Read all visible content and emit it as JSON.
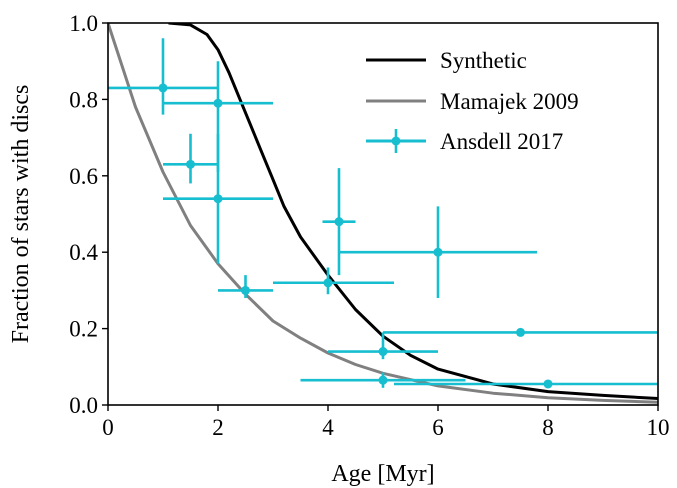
{
  "chart_data": {
    "type": "line",
    "xlabel": "Age [Myr]",
    "ylabel": "Fraction of stars with discs",
    "xlim": [
      0,
      10
    ],
    "ylim": [
      0,
      1.0
    ],
    "xticks": [
      0,
      2,
      4,
      6,
      8,
      10
    ],
    "yticks": [
      0.0,
      0.2,
      0.4,
      0.6,
      0.8,
      1.0
    ],
    "xtick_labels": [
      "0",
      "2",
      "4",
      "6",
      "8",
      "10"
    ],
    "ytick_labels": [
      "0.0",
      "0.2",
      "0.4",
      "0.6",
      "0.8",
      "1.0"
    ],
    "grid": false,
    "legend_position": "top-right",
    "series": [
      {
        "name": "Synthetic",
        "type": "line",
        "color": "#000000",
        "x": [
          1.1,
          1.5,
          1.8,
          2.0,
          2.2,
          2.4,
          2.6,
          2.8,
          3.0,
          3.2,
          3.5,
          4.0,
          4.5,
          5.0,
          5.5,
          6.0,
          7.0,
          8.0,
          9.0,
          10.0
        ],
        "y": [
          1.0,
          0.995,
          0.97,
          0.93,
          0.87,
          0.8,
          0.73,
          0.66,
          0.59,
          0.52,
          0.44,
          0.34,
          0.25,
          0.18,
          0.13,
          0.094,
          0.055,
          0.035,
          0.025,
          0.017
        ]
      },
      {
        "name": "Mamajek 2009",
        "type": "line",
        "color": "#808080",
        "x": [
          0,
          0.5,
          1.0,
          1.5,
          2.0,
          2.5,
          3.0,
          3.5,
          4.0,
          4.5,
          5.0,
          6.0,
          7.0,
          8.0,
          9.0,
          10.0
        ],
        "y": [
          1.0,
          0.78,
          0.61,
          0.47,
          0.37,
          0.29,
          0.22,
          0.175,
          0.136,
          0.106,
          0.083,
          0.05,
          0.031,
          0.019,
          0.012,
          0.007
        ]
      },
      {
        "name": "Ansdell 2017",
        "type": "errorbar",
        "color": "#17becf",
        "points": [
          {
            "x": 1.0,
            "y": 0.83,
            "xerr": [
              1.0,
              1.0
            ],
            "yerr": [
              0.07,
              0.13
            ]
          },
          {
            "x": 2.0,
            "y": 0.79,
            "xerr": [
              1.0,
              1.0
            ],
            "yerr": [
              0.18,
              0.11
            ]
          },
          {
            "x": 1.5,
            "y": 0.63,
            "xerr": [
              0.5,
              0.5
            ],
            "yerr": [
              0.05,
              0.08
            ]
          },
          {
            "x": 2.0,
            "y": 0.54,
            "xerr": [
              1.0,
              1.0
            ],
            "yerr": [
              0.17,
              0.17
            ]
          },
          {
            "x": 4.2,
            "y": 0.48,
            "xerr": [
              0.3,
              0.3
            ],
            "yerr": [
              0.14,
              0.14
            ]
          },
          {
            "x": 6.0,
            "y": 0.4,
            "xerr": [
              1.8,
              1.8
            ],
            "yerr": [
              0.12,
              0.12
            ]
          },
          {
            "x": 4.0,
            "y": 0.32,
            "xerr": [
              1.0,
              1.2
            ],
            "yerr": [
              0.03,
              0.04
            ]
          },
          {
            "x": 2.5,
            "y": 0.3,
            "xerr": [
              0.5,
              0.5
            ],
            "yerr": [
              0.02,
              0.04
            ]
          },
          {
            "x": 7.5,
            "y": 0.19,
            "xerr": [
              2.5,
              2.5
            ],
            "yerr": [
              0.01,
              0.01
            ]
          },
          {
            "x": 5.0,
            "y": 0.14,
            "xerr": [
              1.0,
              1.0
            ],
            "yerr": [
              0.02,
              0.05
            ]
          },
          {
            "x": 5.0,
            "y": 0.065,
            "xerr": [
              1.5,
              1.5
            ],
            "yerr": [
              0.02,
              0.02
            ]
          },
          {
            "x": 8.0,
            "y": 0.055,
            "xerr": [
              2.8,
              2.0
            ],
            "yerr": [
              0.005,
              0.005
            ]
          }
        ]
      }
    ]
  }
}
